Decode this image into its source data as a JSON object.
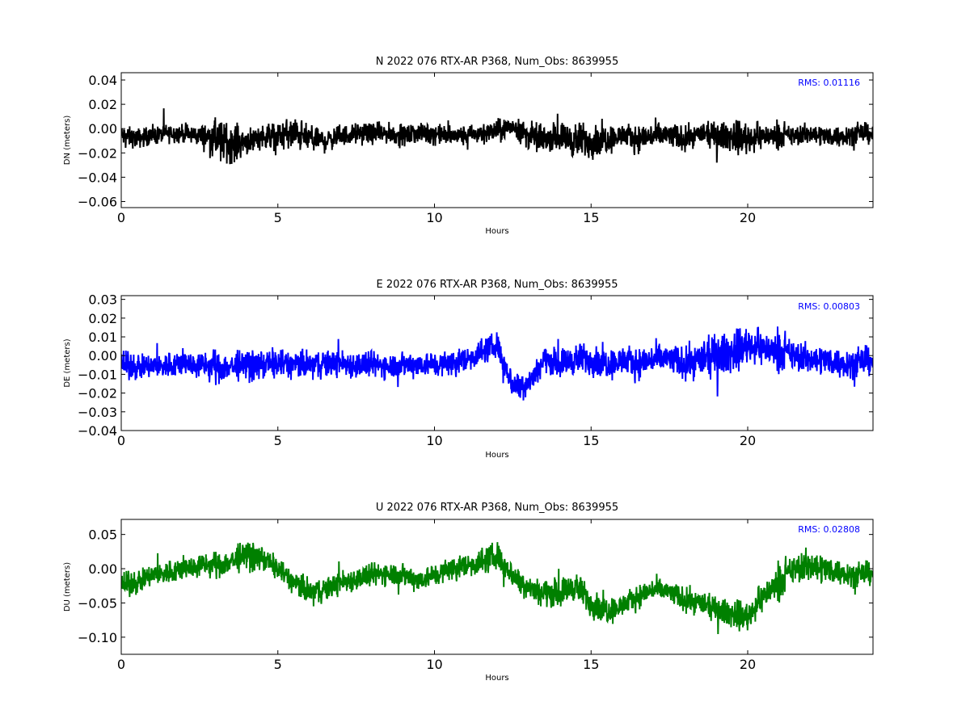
{
  "chart_data": [
    {
      "type": "line",
      "title": "N 2022 076 RTX-AR  P368, Num_Obs: 8639955",
      "xlabel": "Hours",
      "ylabel": "DN (meters)",
      "xlim": [
        0,
        24
      ],
      "ylim": [
        -0.065,
        0.046
      ],
      "xticks": [
        0,
        5,
        10,
        15,
        20
      ],
      "yticks": [
        -0.06,
        -0.04,
        -0.02,
        0.0,
        0.02,
        0.04
      ],
      "ytick_labels": [
        "−0.06",
        "−0.04",
        "−0.02",
        "0.00",
        "0.02",
        "0.04"
      ],
      "color": "#000000",
      "grid": false,
      "annotation": "RMS:  0.01116",
      "series": [
        {
          "x": [
            0,
            0.5,
            1,
            1.5,
            2,
            2.5,
            3,
            3.5,
            4,
            4.5,
            5,
            5.5,
            6,
            6.5,
            7,
            7.5,
            8,
            8.5,
            9,
            9.5,
            10,
            10.5,
            11,
            11.5,
            12,
            12.5,
            13,
            13.5,
            14,
            14.5,
            15,
            15.5,
            16,
            16.5,
            17,
            17.5,
            18,
            18.5,
            19,
            19.5,
            20,
            20.5,
            21,
            21.5,
            22,
            22.5,
            23,
            23.5,
            24
          ],
          "center": [
            -0.006,
            -0.008,
            -0.006,
            -0.004,
            -0.004,
            -0.006,
            -0.008,
            -0.012,
            -0.01,
            -0.006,
            -0.006,
            -0.004,
            -0.008,
            -0.01,
            -0.006,
            -0.004,
            -0.004,
            -0.004,
            -0.006,
            -0.004,
            -0.004,
            -0.006,
            -0.006,
            -0.004,
            -0.002,
            0.002,
            -0.006,
            -0.008,
            -0.006,
            -0.01,
            -0.01,
            -0.008,
            -0.006,
            -0.008,
            -0.006,
            -0.006,
            -0.008,
            -0.004,
            -0.006,
            -0.006,
            -0.008,
            -0.006,
            -0.006,
            -0.006,
            -0.004,
            -0.006,
            -0.006,
            -0.004,
            -0.004
          ],
          "amplitude": [
            0.012,
            0.012,
            0.011,
            0.011,
            0.011,
            0.012,
            0.022,
            0.024,
            0.016,
            0.014,
            0.016,
            0.02,
            0.016,
            0.014,
            0.012,
            0.012,
            0.012,
            0.012,
            0.012,
            0.012,
            0.012,
            0.012,
            0.012,
            0.012,
            0.013,
            0.012,
            0.016,
            0.016,
            0.016,
            0.022,
            0.02,
            0.018,
            0.014,
            0.016,
            0.016,
            0.016,
            0.014,
            0.012,
            0.016,
            0.018,
            0.02,
            0.014,
            0.012,
            0.012,
            0.012,
            0.012,
            0.012,
            0.012,
            0.012
          ]
        }
      ]
    },
    {
      "type": "line",
      "title": "E 2022 076 RTX-AR  P368, Num_Obs: 8639955",
      "xlabel": "Hours",
      "ylabel": "DE (meters)",
      "xlim": [
        0,
        24
      ],
      "ylim": [
        -0.04,
        0.032
      ],
      "xticks": [
        0,
        5,
        10,
        15,
        20
      ],
      "yticks": [
        -0.04,
        -0.03,
        -0.02,
        -0.01,
        0.0,
        0.01,
        0.02,
        0.03
      ],
      "ytick_labels": [
        "−0.04",
        "−0.03",
        "−0.02",
        "−0.01",
        "0.00",
        "0.01",
        "0.02",
        "0.03"
      ],
      "color": "#0000ff",
      "grid": false,
      "annotation": "RMS:  0.00803",
      "series": [
        {
          "x": [
            0,
            0.5,
            1,
            1.5,
            2,
            2.5,
            3,
            3.5,
            4,
            4.5,
            5,
            5.5,
            6,
            6.5,
            7,
            7.5,
            8,
            8.5,
            9,
            9.5,
            10,
            10.5,
            11,
            11.5,
            12,
            12.5,
            13,
            13.5,
            14,
            14.5,
            15,
            15.5,
            16,
            16.5,
            17,
            17.5,
            18,
            18.5,
            19,
            19.5,
            20,
            20.5,
            21,
            21.5,
            22,
            22.5,
            23,
            23.5,
            24
          ],
          "center": [
            -0.005,
            -0.006,
            -0.006,
            -0.005,
            -0.004,
            -0.005,
            -0.006,
            -0.006,
            -0.005,
            -0.005,
            -0.004,
            -0.005,
            -0.005,
            -0.004,
            -0.004,
            -0.005,
            -0.005,
            -0.005,
            -0.005,
            -0.004,
            -0.005,
            -0.004,
            -0.002,
            0.002,
            0.006,
            -0.016,
            -0.014,
            -0.002,
            -0.004,
            -0.002,
            -0.002,
            -0.004,
            -0.003,
            -0.004,
            -0.002,
            -0.002,
            -0.004,
            -0.002,
            0.0,
            0.002,
            0.006,
            0.004,
            0.002,
            0.0,
            -0.002,
            -0.002,
            -0.004,
            -0.004,
            -0.002
          ],
          "amplitude": [
            0.01,
            0.01,
            0.01,
            0.01,
            0.01,
            0.01,
            0.012,
            0.012,
            0.011,
            0.011,
            0.012,
            0.011,
            0.011,
            0.011,
            0.01,
            0.011,
            0.01,
            0.01,
            0.01,
            0.01,
            0.01,
            0.01,
            0.01,
            0.01,
            0.01,
            0.01,
            0.01,
            0.01,
            0.011,
            0.012,
            0.012,
            0.012,
            0.012,
            0.012,
            0.012,
            0.012,
            0.012,
            0.014,
            0.016,
            0.016,
            0.014,
            0.013,
            0.012,
            0.012,
            0.011,
            0.011,
            0.011,
            0.011,
            0.011
          ]
        }
      ]
    },
    {
      "type": "line",
      "title": "U 2022 076 RTX-AR  P368, Num_Obs: 8639955",
      "xlabel": "Hours",
      "ylabel": "DU (meters)",
      "xlim": [
        0,
        24
      ],
      "ylim": [
        -0.125,
        0.072
      ],
      "xticks": [
        0,
        5,
        10,
        15,
        20
      ],
      "yticks": [
        -0.1,
        -0.05,
        0.0,
        0.05
      ],
      "ytick_labels": [
        "−0.10",
        "−0.05",
        "0.00",
        "0.05"
      ],
      "color": "#008000",
      "grid": false,
      "annotation": "RMS:  0.02808",
      "series": [
        {
          "x": [
            0,
            0.5,
            1,
            1.5,
            2,
            2.5,
            3,
            3.5,
            4,
            4.5,
            5,
            5.5,
            6,
            6.5,
            7,
            7.5,
            8,
            8.5,
            9,
            9.5,
            10,
            10.5,
            11,
            11.5,
            12,
            12.5,
            13,
            13.5,
            14,
            14.5,
            15,
            15.5,
            16,
            16.5,
            17,
            17.5,
            18,
            18.5,
            19,
            19.5,
            20,
            20.5,
            21,
            21.5,
            22,
            22.5,
            23,
            23.5,
            24
          ],
          "center": [
            -0.025,
            -0.02,
            -0.01,
            -0.005,
            0.0,
            0.005,
            0.005,
            0.01,
            0.02,
            0.015,
            0.0,
            -0.02,
            -0.035,
            -0.03,
            -0.02,
            -0.015,
            -0.01,
            -0.005,
            -0.01,
            -0.015,
            -0.01,
            0.0,
            0.005,
            0.01,
            0.02,
            -0.01,
            -0.025,
            -0.035,
            -0.035,
            -0.025,
            -0.05,
            -0.06,
            -0.055,
            -0.04,
            -0.03,
            -0.035,
            -0.045,
            -0.05,
            -0.06,
            -0.065,
            -0.07,
            -0.04,
            -0.02,
            0.0,
            0.005,
            0.0,
            -0.005,
            -0.01,
            -0.005
          ],
          "amplitude": [
            0.025,
            0.025,
            0.025,
            0.025,
            0.025,
            0.025,
            0.025,
            0.03,
            0.03,
            0.025,
            0.025,
            0.025,
            0.03,
            0.025,
            0.025,
            0.025,
            0.025,
            0.025,
            0.025,
            0.025,
            0.025,
            0.025,
            0.025,
            0.028,
            0.03,
            0.025,
            0.025,
            0.03,
            0.03,
            0.03,
            0.03,
            0.03,
            0.025,
            0.025,
            0.025,
            0.025,
            0.025,
            0.025,
            0.025,
            0.03,
            0.03,
            0.03,
            0.03,
            0.03,
            0.035,
            0.03,
            0.025,
            0.025,
            0.025
          ]
        }
      ]
    }
  ]
}
